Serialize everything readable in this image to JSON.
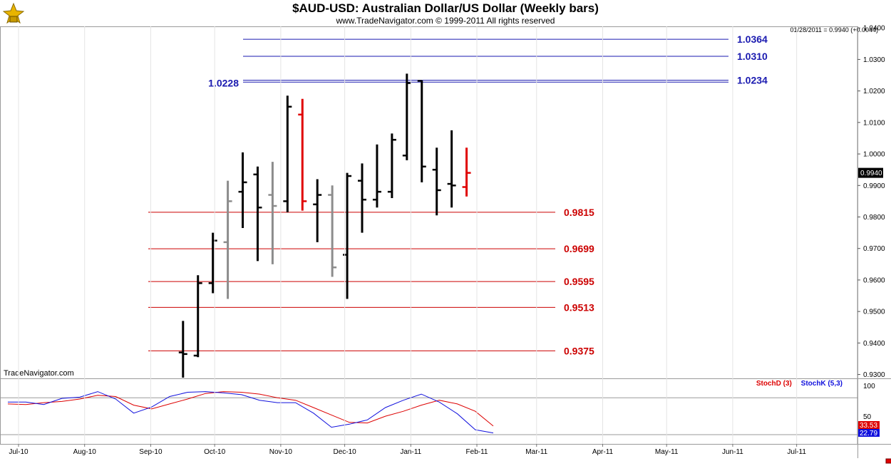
{
  "header": {
    "title": "$AUD-USD:  Australian Dollar/US Dollar  (Weekly bars)",
    "subtitle": "www.TradeNavigator.com © 1999-2011 All rights reserved",
    "last_quote": "01/28/2011 = 0.9940 (+0.0044)",
    "brand": "TradeNavigator.com"
  },
  "colors": {
    "up_bar": "#000000",
    "down_bar_red": "#e00000",
    "inside_bar_gray": "#8c8c8c",
    "fib_blue": "#1a1ab0",
    "fib_red": "#cc0000",
    "stoch_d": "#dd0000",
    "stoch_k": "#1010dd"
  },
  "chart_data": {
    "type": "ohlc",
    "title": "$AUD-USD:  Australian Dollar/US Dollar  (Weekly bars)",
    "y_range": [
      0.929,
      1.0405
    ],
    "y_ticks": [
      0.93,
      0.94,
      0.95,
      0.96,
      0.97,
      0.98,
      0.99,
      1.0,
      1.01,
      1.02,
      1.03,
      1.04
    ],
    "x_month_labels": [
      "Jul-10",
      "Aug-10",
      "Sep-10",
      "Oct-10",
      "Nov-10",
      "Dec-10",
      "Jan-11",
      "Feb-11",
      "Mar-11",
      "Apr-11",
      "May-11",
      "Jun-11",
      "Jul-11"
    ],
    "last_price_label": "0.9940",
    "bars": [
      {
        "week": "2010-09-17",
        "open": 0.937,
        "high": 0.947,
        "low": 0.929,
        "close": 0.9365,
        "color": "black"
      },
      {
        "week": "2010-09-24",
        "open": 0.936,
        "high": 0.9615,
        "low": 0.9355,
        "close": 0.959,
        "color": "black"
      },
      {
        "week": "2010-10-01",
        "open": 0.959,
        "high": 0.975,
        "low": 0.9558,
        "close": 0.9725,
        "color": "black"
      },
      {
        "week": "2010-10-08",
        "open": 0.972,
        "high": 0.9915,
        "low": 0.954,
        "close": 0.985,
        "color": "gray"
      },
      {
        "week": "2010-10-15",
        "open": 0.988,
        "high": 1.0005,
        "low": 0.9765,
        "close": 0.991,
        "color": "black"
      },
      {
        "week": "2010-10-22",
        "open": 0.9935,
        "high": 0.996,
        "low": 0.966,
        "close": 0.983,
        "color": "black"
      },
      {
        "week": "2010-10-29",
        "open": 0.987,
        "high": 0.9975,
        "low": 0.965,
        "close": 0.9835,
        "color": "gray"
      },
      {
        "week": "2010-11-05",
        "open": 0.985,
        "high": 1.0185,
        "low": 0.9815,
        "close": 1.015,
        "color": "black"
      },
      {
        "week": "2010-11-12",
        "open": 1.0125,
        "high": 1.0175,
        "low": 0.982,
        "close": 0.985,
        "color": "red"
      },
      {
        "week": "2010-11-19",
        "open": 0.984,
        "high": 0.992,
        "low": 0.972,
        "close": 0.987,
        "color": "black"
      },
      {
        "week": "2010-11-26",
        "open": 0.987,
        "high": 0.99,
        "low": 0.961,
        "close": 0.964,
        "color": "gray"
      },
      {
        "week": "2010-12-03",
        "open": 0.968,
        "high": 0.994,
        "low": 0.954,
        "close": 0.993,
        "color": "black"
      },
      {
        "week": "2010-12-10",
        "open": 0.9915,
        "high": 0.997,
        "low": 0.975,
        "close": 0.9855,
        "color": "black"
      },
      {
        "week": "2010-12-17",
        "open": 0.9855,
        "high": 1.003,
        "low": 0.983,
        "close": 0.988,
        "color": "black"
      },
      {
        "week": "2010-12-24",
        "open": 0.988,
        "high": 1.0065,
        "low": 0.986,
        "close": 1.0045,
        "color": "black"
      },
      {
        "week": "2010-12-31",
        "open": 0.9995,
        "high": 1.0255,
        "low": 0.998,
        "close": 1.0225,
        "color": "black"
      },
      {
        "week": "2011-01-07",
        "open": 1.0232,
        "high": 1.0234,
        "low": 0.991,
        "close": 0.996,
        "color": "black"
      },
      {
        "week": "2011-01-14",
        "open": 0.995,
        "high": 1.002,
        "low": 0.9805,
        "close": 0.9885,
        "color": "black"
      },
      {
        "week": "2011-01-21",
        "open": 0.9905,
        "high": 1.0075,
        "low": 0.983,
        "close": 0.99,
        "color": "black"
      },
      {
        "week": "2011-01-28",
        "open": 0.9895,
        "high": 1.002,
        "low": 0.9865,
        "close": 0.994,
        "color": "red"
      }
    ],
    "fib_levels_blue": [
      {
        "value": 1.0364,
        "label": "1.0364"
      },
      {
        "value": 1.031,
        "label": "1.0310"
      },
      {
        "value": 1.0234,
        "label": "1.0234"
      },
      {
        "value": 1.0228,
        "label": "1.0228"
      }
    ],
    "fib_levels_red": [
      {
        "value": 0.9815,
        "label": "0.9815"
      },
      {
        "value": 0.9699,
        "label": "0.9699"
      },
      {
        "value": 0.9595,
        "label": "0.9595"
      },
      {
        "value": 0.9513,
        "label": "0.9513"
      },
      {
        "value": 0.9375,
        "label": "0.9375"
      }
    ],
    "stochastic": {
      "legend_d": "StochD (3)",
      "legend_k": "StochK (5,3)",
      "y_range": [
        20,
        100
      ],
      "y_ticks": [
        100,
        50
      ],
      "last_d": "33.53",
      "last_k": "22.79",
      "stoch_d": [
        70,
        69,
        72,
        74,
        78,
        84,
        82,
        68,
        62,
        70,
        78,
        87,
        90,
        89,
        86,
        80,
        76,
        64,
        52,
        40,
        39,
        50,
        58,
        68,
        76,
        70,
        58,
        34
      ],
      "stoch_k": [
        73,
        73,
        69,
        79,
        81,
        90,
        78,
        55,
        65,
        82,
        89,
        90,
        88,
        85,
        76,
        72,
        72,
        55,
        32,
        37,
        44,
        64,
        76,
        86,
        73,
        54,
        28,
        22.79
      ]
    }
  }
}
